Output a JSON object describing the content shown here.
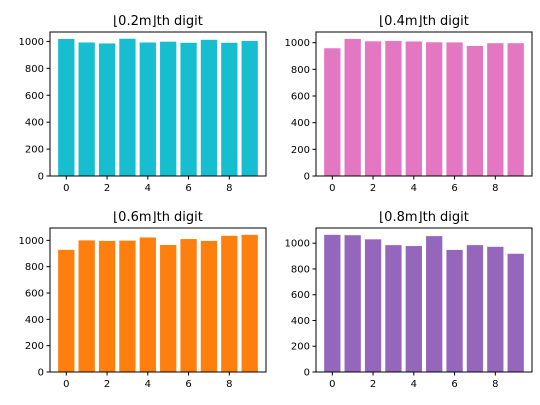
{
  "chart_data": [
    {
      "type": "bar",
      "title": "⌊0.2m⌋th digit",
      "categories": [
        0,
        1,
        2,
        3,
        4,
        5,
        6,
        7,
        8,
        9
      ],
      "values": [
        1018,
        992,
        985,
        1020,
        992,
        998,
        990,
        1012,
        990,
        1003
      ],
      "color": "#17becf",
      "xticks": [
        0,
        2,
        4,
        6,
        8
      ],
      "yticks": [
        0,
        200,
        400,
        600,
        800,
        1000
      ],
      "ylim": [
        0,
        1070
      ],
      "xlim": [
        -0.8,
        9.8
      ],
      "grid": false
    },
    {
      "type": "bar",
      "title": "⌊0.4m⌋th digit",
      "categories": [
        0,
        1,
        2,
        3,
        4,
        5,
        6,
        7,
        8,
        9
      ],
      "values": [
        958,
        1028,
        1010,
        1013,
        1009,
        1003,
        1002,
        975,
        996,
        996
      ],
      "color": "#e377c2",
      "xticks": [
        0,
        2,
        4,
        6,
        8
      ],
      "yticks": [
        0,
        200,
        400,
        600,
        800,
        1000
      ],
      "ylim": [
        0,
        1080
      ],
      "xlim": [
        -0.8,
        9.8
      ],
      "grid": false
    },
    {
      "type": "bar",
      "title": "⌊0.6m⌋th digit",
      "categories": [
        0,
        1,
        2,
        3,
        4,
        5,
        6,
        7,
        8,
        9
      ],
      "values": [
        928,
        1000,
        996,
        998,
        1022,
        965,
        1010,
        996,
        1035,
        1042
      ],
      "color": "#ff7f0e",
      "xticks": [
        0,
        2,
        4,
        6,
        8
      ],
      "yticks": [
        0,
        200,
        400,
        600,
        800,
        1000
      ],
      "ylim": [
        0,
        1094
      ],
      "xlim": [
        -0.8,
        9.8
      ],
      "grid": false
    },
    {
      "type": "bar",
      "title": "⌊0.8m⌋th digit",
      "categories": [
        0,
        1,
        2,
        3,
        4,
        5,
        6,
        7,
        8,
        9
      ],
      "values": [
        1065,
        1062,
        1030,
        985,
        978,
        1055,
        948,
        985,
        972,
        918
      ],
      "color": "#9467bd",
      "xticks": [
        0,
        2,
        4,
        6,
        8
      ],
      "yticks": [
        0,
        200,
        400,
        600,
        800,
        1000
      ],
      "ylim": [
        0,
        1118
      ],
      "xlim": [
        -0.8,
        9.8
      ],
      "grid": false
    }
  ]
}
